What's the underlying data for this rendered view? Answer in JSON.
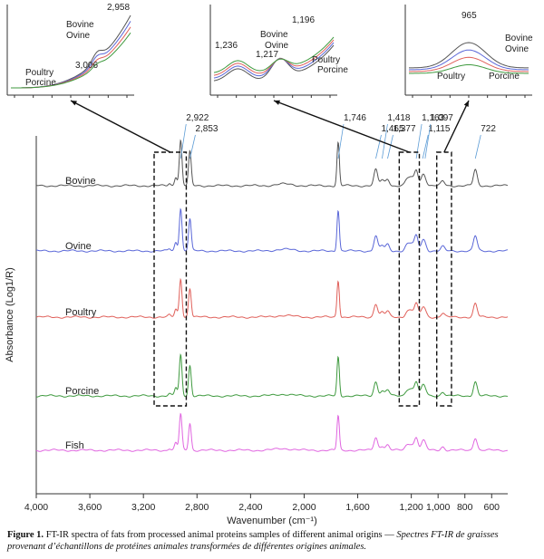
{
  "chart_data": {
    "type": "line",
    "xlabel": "Wavenumber (cm⁻¹)",
    "ylabel": "Absorbance (Log1/R)",
    "xlim": [
      4000,
      480
    ],
    "x_reversed": true,
    "x_ticks": [
      4000,
      3600,
      3200,
      2800,
      2400,
      2000,
      1600,
      1200,
      1000,
      800,
      600
    ],
    "x_tick_labels": [
      "4,000",
      "3,600",
      "3,200",
      "2,800",
      "2,400",
      "2,000",
      "1,600",
      "1,200",
      "1,000",
      "800",
      "600"
    ],
    "series": [
      {
        "name": "Bovine",
        "color": "#555555",
        "scale": 1.0
      },
      {
        "name": "Ovine",
        "color": "#5a67d8",
        "scale": 0.95
      },
      {
        "name": "Poultry",
        "color": "#e0605a",
        "scale": 0.85
      },
      {
        "name": "Porcine",
        "color": "#3f9a3f",
        "scale": 0.9
      },
      {
        "name": "Fish",
        "color": "#e066e0",
        "scale": 0.8
      }
    ],
    "peaks": [
      {
        "x": 3006,
        "h": 2
      },
      {
        "x": 2958,
        "h": 8
      },
      {
        "x": 2922,
        "h": 40
      },
      {
        "x": 2853,
        "h": 30
      },
      {
        "x": 1746,
        "h": 38
      },
      {
        "x": 1465,
        "h": 14
      },
      {
        "x": 1418,
        "h": 5
      },
      {
        "x": 1377,
        "h": 6
      },
      {
        "x": 1236,
        "h": 4
      },
      {
        "x": 1217,
        "h": 4
      },
      {
        "x": 1196,
        "h": 5
      },
      {
        "x": 1163,
        "h": 14
      },
      {
        "x": 1115,
        "h": 8
      },
      {
        "x": 1097,
        "h": 5
      },
      {
        "x": 965,
        "h": 4
      },
      {
        "x": 722,
        "h": 14
      }
    ],
    "peak_labels": [
      {
        "x": 2922,
        "text": "2,922"
      },
      {
        "x": 2853,
        "text": "2,853"
      },
      {
        "x": 1746,
        "text": "1,746"
      },
      {
        "x": 1465,
        "text": "1,465"
      },
      {
        "x": 1418,
        "text": "1,418"
      },
      {
        "x": 1377,
        "text": "1,377"
      },
      {
        "x": 1163,
        "text": "1,163"
      },
      {
        "x": 1115,
        "text": "1,115"
      },
      {
        "x": 1097,
        "text": "1,097"
      },
      {
        "x": 722,
        "text": "722"
      }
    ],
    "zoom_boxes": [
      {
        "from": 3120,
        "to": 2880
      },
      {
        "from": 1290,
        "to": 1140
      },
      {
        "from": 1010,
        "to": 900
      }
    ],
    "insets": [
      {
        "peak_labels": [
          {
            "x": 2958,
            "text": "2,958"
          },
          {
            "x": 3006,
            "text": "3,006"
          }
        ],
        "legend": [
          "Bovine",
          "Ovine",
          "Poultry",
          "Porcine"
        ]
      },
      {
        "peak_labels": [
          {
            "x": 1236,
            "text": "1,236"
          },
          {
            "x": 1217,
            "text": "1,217"
          },
          {
            "x": 1196,
            "text": "1,196"
          }
        ],
        "legend": [
          "Bovine",
          "Ovine",
          "Poultry",
          "Porcine"
        ]
      },
      {
        "peak_labels": [
          {
            "x": 965,
            "text": "965"
          }
        ],
        "legend": [
          "Bovine",
          "Ovine",
          "Poultry",
          "Porcine"
        ]
      }
    ]
  },
  "caption": {
    "label": "Figure 1.",
    "text": " FT-IR spectra of fats from processed animal proteins samples of different animal origins — ",
    "french": "Spectres FT-IR de graisses provenant d’échantillons de protéines animales transformées de différentes origines animales."
  }
}
